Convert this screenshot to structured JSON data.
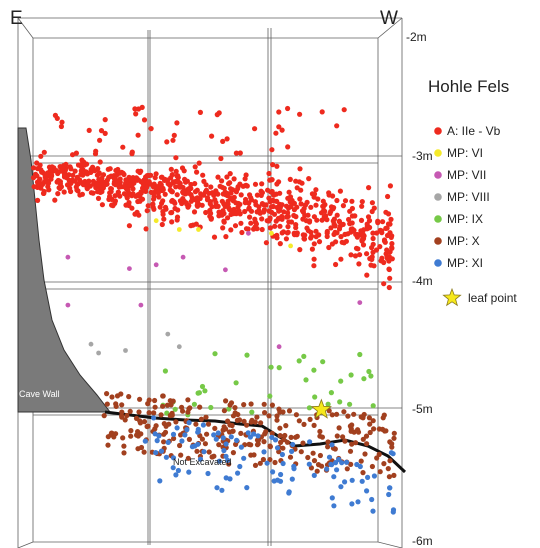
{
  "chart_data": {
    "type": "scatter",
    "title": "Hohle Fels",
    "orientation": {
      "left": "E",
      "right": "W"
    },
    "y_axis": {
      "unit": "m",
      "range": [
        -2,
        -6
      ],
      "ticks": [
        "-2m",
        "-3m",
        "-4m",
        "-5m",
        "-6m"
      ]
    },
    "legend": {
      "placement": "right",
      "entries": [
        {
          "label": "A: IIe - Vb",
          "color": "#ee2a1e"
        },
        {
          "label": "MP: VI",
          "color": "#f5ea2a"
        },
        {
          "label": "MP: VII",
          "color": "#c659b3"
        },
        {
          "label": "MP: VIII",
          "color": "#a6a6a6"
        },
        {
          "label": "MP: IX",
          "color": "#76c947"
        },
        {
          "label": "MP: X",
          "color": "#a2401f"
        },
        {
          "label": "MP: XI",
          "color": "#3f7bd2"
        },
        {
          "label": "leaf point",
          "color": "#f6e81c",
          "marker": "star"
        }
      ]
    },
    "series": [
      {
        "name": "A: IIe - Vb",
        "color": "#ee2a1e",
        "approx_count": 900,
        "depth_trend": {
          "east_top": -3.0,
          "east_bottom": -3.2,
          "west_top": -3.3,
          "west_bottom": -3.9
        }
      },
      {
        "name": "MP: VI",
        "color": "#f5ea2a",
        "approx_count": 5,
        "points": [
          [
            0.36,
            -3.45
          ],
          [
            0.42,
            -3.52
          ],
          [
            0.47,
            -3.52
          ],
          [
            0.66,
            -3.55
          ],
          [
            0.71,
            -3.65
          ]
        ]
      },
      {
        "name": "MP: VII",
        "color": "#c659b3",
        "approx_count": 10,
        "points": [
          [
            0.13,
            -3.74
          ],
          [
            0.29,
            -3.83
          ],
          [
            0.36,
            -3.8
          ],
          [
            0.43,
            -3.74
          ],
          [
            0.54,
            -3.84
          ],
          [
            0.13,
            -4.12
          ],
          [
            0.32,
            -4.12
          ],
          [
            0.68,
            -4.45
          ],
          [
            0.89,
            -4.1
          ],
          [
            0.6,
            -3.55
          ]
        ]
      },
      {
        "name": "MP: VIII",
        "color": "#a6a6a6",
        "approx_count": 5,
        "points": [
          [
            0.19,
            -4.43
          ],
          [
            0.21,
            -4.5
          ],
          [
            0.28,
            -4.48
          ],
          [
            0.39,
            -4.35
          ],
          [
            0.42,
            -4.45
          ]
        ]
      },
      {
        "name": "MP: IX",
        "color": "#76c947",
        "approx_count": 40,
        "area": {
          "x_range": [
            0.37,
            0.94
          ],
          "depth_range": [
            -4.5,
            -5.0
          ]
        }
      },
      {
        "name": "MP: X",
        "color": "#a2401f",
        "approx_count": 300,
        "area": {
          "x_range": [
            0.22,
            0.98
          ],
          "depth_range": [
            -4.8,
            -5.3
          ]
        }
      },
      {
        "name": "MP: XI",
        "color": "#3f7bd2",
        "approx_count": 100,
        "area": {
          "x_range": [
            0.33,
            0.98
          ],
          "depth_range": [
            -5.0,
            -5.5
          ]
        }
      }
    ],
    "leaf_point": [
      0.79,
      -4.95
    ],
    "annotations": [
      "Cave Wall",
      "Not Excavated"
    ],
    "grid": true
  }
}
